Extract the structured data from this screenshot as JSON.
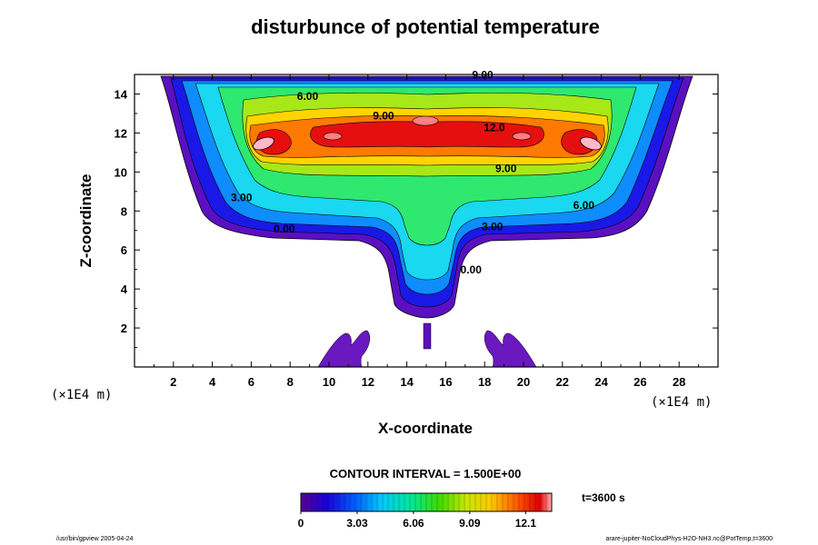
{
  "chart_data": {
    "type": "heatmap",
    "title": "disturbunce of potential temperature",
    "xlabel": "X-coordinate",
    "ylabel": "Z-coordinate",
    "x_unit": "(×1E4 m)",
    "y_unit": "(×1E4 m)",
    "xlim": [
      0,
      30
    ],
    "ylim": [
      0,
      15
    ],
    "x_ticks": [
      2,
      4,
      6,
      8,
      10,
      12,
      14,
      16,
      18,
      20,
      22,
      24,
      26,
      28
    ],
    "y_ticks": [
      2,
      4,
      6,
      8,
      10,
      12,
      14
    ],
    "contour_interval": "CONTOUR INTERVAL = 1.500E+00",
    "colorbar": {
      "min": 0,
      "max": 13.5,
      "tick_values": [
        0,
        3.03,
        6.06,
        9.09,
        12.1
      ],
      "tick_labels": [
        "0",
        "3.03",
        "6.06",
        "9.09",
        "12.1"
      ]
    },
    "time_label": "t=3600 s",
    "contour_labels": [
      {
        "text": "9.00",
        "x": 17.9,
        "z": 14.8
      },
      {
        "text": "6.00",
        "x": 8.9,
        "z": 13.7
      },
      {
        "text": "9.00",
        "x": 12.8,
        "z": 12.7
      },
      {
        "text": "12.0",
        "x": 18.5,
        "z": 12.1
      },
      {
        "text": "9.00",
        "x": 19.1,
        "z": 10.0
      },
      {
        "text": "3.00",
        "x": 5.5,
        "z": 8.5
      },
      {
        "text": "6.00",
        "x": 23.1,
        "z": 8.1
      },
      {
        "text": "0.00",
        "x": 7.7,
        "z": 6.9
      },
      {
        "text": "3.00",
        "x": 18.4,
        "z": 7.0
      },
      {
        "text": "0.00",
        "x": 17.3,
        "z": 4.8
      }
    ],
    "field_features": [
      {
        "shape": "cap",
        "x_range": [
          1.7,
          28.3
        ],
        "z_range": [
          6.6,
          15
        ],
        "peak": 13.5
      },
      {
        "shape": "stem",
        "x_range": [
          12.7,
          17.3
        ],
        "z_range": [
          2.7,
          7.2
        ],
        "peak": 7.0
      },
      {
        "shape": "warm-band",
        "z_center": 11.9,
        "peak": 12.5
      },
      {
        "shape": "hot-spot",
        "x": 6.6,
        "z": 11.5,
        "peak": 13.5
      },
      {
        "shape": "hot-spot",
        "x": 23.3,
        "z": 11.5,
        "peak": 13.5
      },
      {
        "shape": "hot-spot",
        "x": 10.3,
        "z": 11.9,
        "peak": 13.0
      },
      {
        "shape": "hot-spot",
        "x": 14.9,
        "z": 12.6,
        "peak": 13.0
      },
      {
        "shape": "hot-spot",
        "x": 19.7,
        "z": 11.9,
        "peak": 13.0
      },
      {
        "shape": "plume",
        "x": 10.9,
        "z": 1.0
      },
      {
        "shape": "plume",
        "x": 18.9,
        "z": 1.0
      }
    ]
  },
  "footer": {
    "left": "/usr/bin/gpview 2005-04-24",
    "right": "arare-jupiter-NoCloudPhys-H2O-NH3.nc@PotTemp,t=3600"
  }
}
